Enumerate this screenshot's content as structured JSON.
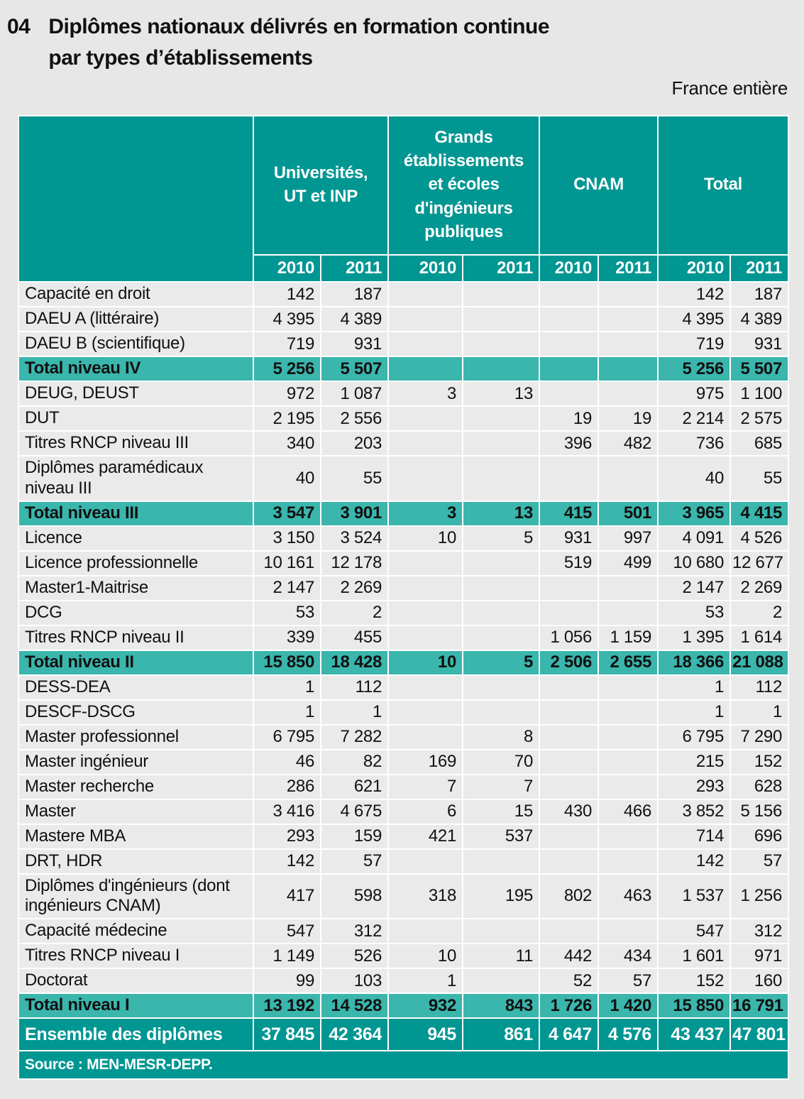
{
  "page": {
    "number": "04",
    "title_line1": "Diplômes nationaux délivrés en formation continue",
    "title_line2": "par types d’établissements",
    "region_label": "France entière"
  },
  "colors": {
    "teal_dark": "#009692",
    "teal_light": "#3ab6ad",
    "row_bg": "#eaeaea",
    "page_bg": "#e7e7e7"
  },
  "table": {
    "column_groups": [
      {
        "label": "Universités,\nUT et INP"
      },
      {
        "label": "Grands\nétablissements\net écoles\nd'ingénieurs\npubliques"
      },
      {
        "label": "CNAM"
      },
      {
        "label": "Total"
      }
    ],
    "year_headers": [
      "2010",
      "2011",
      "2010",
      "2011",
      "2010",
      "2011",
      "2010",
      "2011"
    ],
    "rows": [
      {
        "label": "Capacité en droit",
        "type": "data",
        "values": [
          "142",
          "187",
          "",
          "",
          "",
          "",
          "142",
          "187"
        ]
      },
      {
        "label": "DAEU A (littéraire)",
        "type": "data",
        "values": [
          "4 395",
          "4 389",
          "",
          "",
          "",
          "",
          "4 395",
          "4 389"
        ]
      },
      {
        "label": "DAEU B (scientifique)",
        "type": "data",
        "values": [
          "719",
          "931",
          "",
          "",
          "",
          "",
          "719",
          "931"
        ]
      },
      {
        "label": "Total niveau IV",
        "type": "subtotal",
        "values": [
          "5 256",
          "5 507",
          "",
          "",
          "",
          "",
          "5 256",
          "5 507"
        ]
      },
      {
        "label": "DEUG, DEUST",
        "type": "data",
        "values": [
          "972",
          "1 087",
          "3",
          "13",
          "",
          "",
          "975",
          "1 100"
        ]
      },
      {
        "label": "DUT",
        "type": "data",
        "values": [
          "2 195",
          "2 556",
          "",
          "",
          "19",
          "19",
          "2 214",
          "2 575"
        ]
      },
      {
        "label": "Titres RNCP niveau III",
        "type": "data",
        "values": [
          "340",
          "203",
          "",
          "",
          "396",
          "482",
          "736",
          "685"
        ]
      },
      {
        "label": "Diplômes paramédicaux niveau III",
        "type": "data",
        "values": [
          "40",
          "55",
          "",
          "",
          "",
          "",
          "40",
          "55"
        ]
      },
      {
        "label": "Total niveau III",
        "type": "subtotal",
        "values": [
          "3 547",
          "3 901",
          "3",
          "13",
          "415",
          "501",
          "3 965",
          "4 415"
        ]
      },
      {
        "label": "Licence",
        "type": "data",
        "values": [
          "3 150",
          "3 524",
          "10",
          "5",
          "931",
          "997",
          "4 091",
          "4 526"
        ]
      },
      {
        "label": "Licence professionnelle",
        "type": "data",
        "values": [
          "10 161",
          "12 178",
          "",
          "",
          "519",
          "499",
          "10 680",
          "12 677"
        ]
      },
      {
        "label": "Master1-Maitrise",
        "type": "data",
        "values": [
          "2 147",
          "2 269",
          "",
          "",
          "",
          "",
          "2 147",
          "2 269"
        ]
      },
      {
        "label": "DCG",
        "type": "data",
        "values": [
          "53",
          "2",
          "",
          "",
          "",
          "",
          "53",
          "2"
        ]
      },
      {
        "label": "Titres RNCP niveau II",
        "type": "data",
        "values": [
          "339",
          "455",
          "",
          "",
          "1 056",
          "1 159",
          "1 395",
          "1 614"
        ]
      },
      {
        "label": "Total niveau II",
        "type": "subtotal",
        "values": [
          "15 850",
          "18 428",
          "10",
          "5",
          "2 506",
          "2 655",
          "18 366",
          "21 088"
        ]
      },
      {
        "label": "DESS-DEA",
        "type": "data",
        "values": [
          "1",
          "112",
          "",
          "",
          "",
          "",
          "1",
          "112"
        ]
      },
      {
        "label": "DESCF-DSCG",
        "type": "data",
        "values": [
          "1",
          "1",
          "",
          "",
          "",
          "",
          "1",
          "1"
        ]
      },
      {
        "label": "Master professionnel",
        "type": "data",
        "values": [
          "6 795",
          "7 282",
          "",
          "8",
          "",
          "",
          "6 795",
          "7 290"
        ]
      },
      {
        "label": "Master ingénieur",
        "type": "data",
        "values": [
          "46",
          "82",
          "169",
          "70",
          "",
          "",
          "215",
          "152"
        ]
      },
      {
        "label": "Master recherche",
        "type": "data",
        "values": [
          "286",
          "621",
          "7",
          "7",
          "",
          "",
          "293",
          "628"
        ]
      },
      {
        "label": "Master",
        "type": "data",
        "values": [
          "3 416",
          "4 675",
          "6",
          "15",
          "430",
          "466",
          "3 852",
          "5 156"
        ]
      },
      {
        "label": "Mastere MBA",
        "type": "data",
        "values": [
          "293",
          "159",
          "421",
          "537",
          "",
          "",
          "714",
          "696"
        ]
      },
      {
        "label": "DRT, HDR",
        "type": "data",
        "values": [
          "142",
          "57",
          "",
          "",
          "",
          "",
          "142",
          "57"
        ]
      },
      {
        "label": "Diplômes d'ingénieurs (dont ingénieurs CNAM)",
        "type": "data",
        "values": [
          "417",
          "598",
          "318",
          "195",
          "802",
          "463",
          "1 537",
          "1 256"
        ]
      },
      {
        "label": "Capacité médecine",
        "type": "data",
        "values": [
          "547",
          "312",
          "",
          "",
          "",
          "",
          "547",
          "312"
        ]
      },
      {
        "label": "Titres RNCP niveau I",
        "type": "data",
        "values": [
          "1 149",
          "526",
          "10",
          "11",
          "442",
          "434",
          "1 601",
          "971"
        ]
      },
      {
        "label": "Doctorat",
        "type": "data",
        "values": [
          "99",
          "103",
          "1",
          "",
          "52",
          "57",
          "152",
          "160"
        ]
      },
      {
        "label": "Total niveau I",
        "type": "subtotal",
        "values": [
          "13 192",
          "14 528",
          "932",
          "843",
          "1 726",
          "1 420",
          "15 850",
          "16 791"
        ]
      },
      {
        "label": "Ensemble des diplômes",
        "type": "grandtotal",
        "values": [
          "37 845",
          "42 364",
          "945",
          "861",
          "4 647",
          "4 576",
          "43 437",
          "47 801"
        ]
      }
    ],
    "source": "Source : MEN-MESR-DEPP."
  }
}
